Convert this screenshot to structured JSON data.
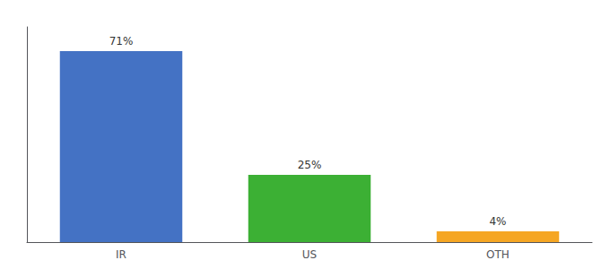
{
  "chart_data": {
    "type": "bar",
    "categories": [
      "IR",
      "US",
      "OTH"
    ],
    "values": [
      71,
      25,
      4
    ],
    "value_labels": [
      "71%",
      "25%",
      "4%"
    ],
    "colors": [
      "#4472c4",
      "#3cb034",
      "#f5a623"
    ],
    "ylim": [
      0,
      80
    ],
    "data_labels": true,
    "tick_labels": "x",
    "grid": false
  }
}
